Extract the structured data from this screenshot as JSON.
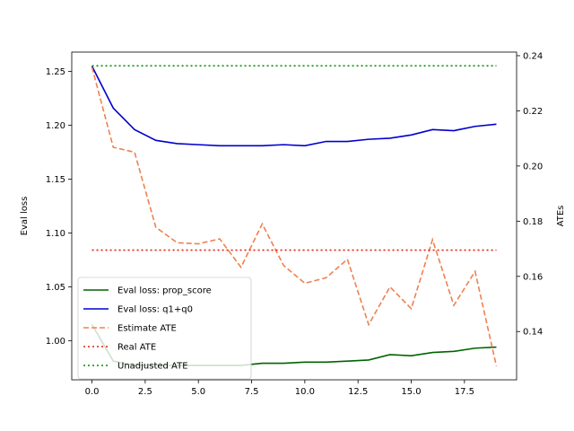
{
  "chart_data": {
    "type": "line",
    "x": [
      0,
      1,
      2,
      3,
      4,
      5,
      6,
      7,
      8,
      9,
      10,
      11,
      12,
      13,
      14,
      15,
      16,
      17,
      18,
      19
    ],
    "xlim": [
      -0.95,
      19.95
    ],
    "xticks": [
      0.0,
      2.5,
      5.0,
      7.5,
      10.0,
      12.5,
      15.0,
      17.5
    ],
    "xtick_labels": [
      "0.0",
      "2.5",
      "5.0",
      "7.5",
      "10.0",
      "12.5",
      "15.0",
      "17.5"
    ],
    "left_axis": {
      "label": "Eval loss",
      "lim": [
        0.9636,
        1.268
      ],
      "ticks": [
        1.0,
        1.05,
        1.1,
        1.15,
        1.2,
        1.25
      ],
      "tick_labels": [
        "1.00",
        "1.05",
        "1.10",
        "1.15",
        "1.20",
        "1.25"
      ]
    },
    "right_axis": {
      "label": "ATEs",
      "lim": [
        0.1225,
        0.2413
      ],
      "ticks": [
        0.14,
        0.16,
        0.18,
        0.2,
        0.22,
        0.24
      ],
      "tick_labels": [
        "0.14",
        "0.16",
        "0.18",
        "0.20",
        "0.22",
        "0.24"
      ]
    },
    "series": [
      {
        "name": "Eval loss: prop_score",
        "axis": "left",
        "color": "#006400",
        "style": "solid",
        "values": [
          1.015,
          0.981,
          0.977,
          0.977,
          0.977,
          0.977,
          0.977,
          0.977,
          0.979,
          0.979,
          0.98,
          0.98,
          0.981,
          0.982,
          0.987,
          0.986,
          0.989,
          0.99,
          0.993,
          0.994
        ]
      },
      {
        "name": "Eval loss: q1+q0",
        "axis": "left",
        "color": "#0000cd",
        "style": "solid",
        "values": [
          1.255,
          1.216,
          1.196,
          1.186,
          1.183,
          1.182,
          1.181,
          1.181,
          1.181,
          1.182,
          1.181,
          1.185,
          1.185,
          1.187,
          1.188,
          1.191,
          1.196,
          1.195,
          1.199,
          1.201
        ]
      },
      {
        "name": "Estimate ATE",
        "axis": "right",
        "color": "#f08050",
        "style": "dashed",
        "values": [
          0.2358,
          0.2068,
          0.205,
          0.1778,
          0.1722,
          0.1718,
          0.1736,
          0.1633,
          0.179,
          0.164,
          0.1575,
          0.1595,
          0.1662,
          0.1425,
          0.1562,
          0.1483,
          0.1733,
          0.1495,
          0.1618,
          0.1275
        ]
      },
      {
        "name": "Real ATE",
        "axis": "right",
        "color": "#e02010",
        "style": "dotted",
        "constant": 0.1695
      },
      {
        "name": "Unadjusted ATE",
        "axis": "right",
        "color": "#009000",
        "style": "dotted",
        "constant": 0.2363
      }
    ],
    "legend_position": "lower-left",
    "grid": false
  }
}
